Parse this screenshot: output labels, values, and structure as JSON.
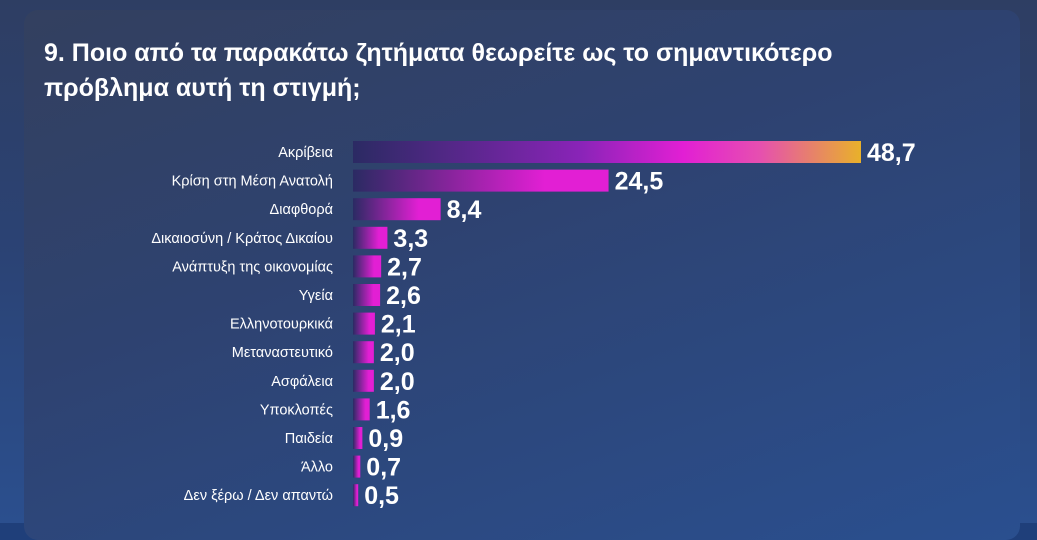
{
  "title": "9. Ποιο από τα παρακάτω ζητήματα θεωρείτε ως το σημαντικότερο πρόβλημα αυτή τη στιγμή;",
  "colors": {
    "bar_start": "#2b2a63",
    "bar_mid": "#e21fd4",
    "bar_end_top": "#e8b12a",
    "text": "#ffffff"
  },
  "chart_data": {
    "type": "bar",
    "orientation": "horizontal",
    "title": "9. Ποιο από τα παρακάτω ζητήματα θεωρείτε ως το σημαντικότερο πρόβλημα αυτή τη στιγμή;",
    "categories": [
      "Ακρίβεια",
      "Κρίση στη Μέση Ανατολή",
      "Διαφθορά",
      "Δικαιοσύνη / Κράτος Δικαίου",
      "Ανάπτυξη της οικονομίας",
      "Υγεία",
      "Ελληνοτουρκικά",
      "Μεταναστευτικό",
      "Ασφάλεια",
      "Υποκλοπές",
      "Παιδεία",
      "Άλλο",
      "Δεν ξέρω / Δεν απαντώ"
    ],
    "values": [
      48.7,
      24.5,
      8.4,
      3.3,
      2.7,
      2.6,
      2.1,
      2.0,
      2.0,
      1.6,
      0.9,
      0.7,
      0.5
    ],
    "value_labels": [
      "48,7",
      "24,5",
      "8,4",
      "3,3",
      "2,7",
      "2,6",
      "2,1",
      "2,0",
      "2,0",
      "1,6",
      "0,9",
      "0,7",
      "0,5"
    ],
    "xlim": [
      0,
      48.7
    ],
    "grid": false,
    "legend": "none"
  }
}
